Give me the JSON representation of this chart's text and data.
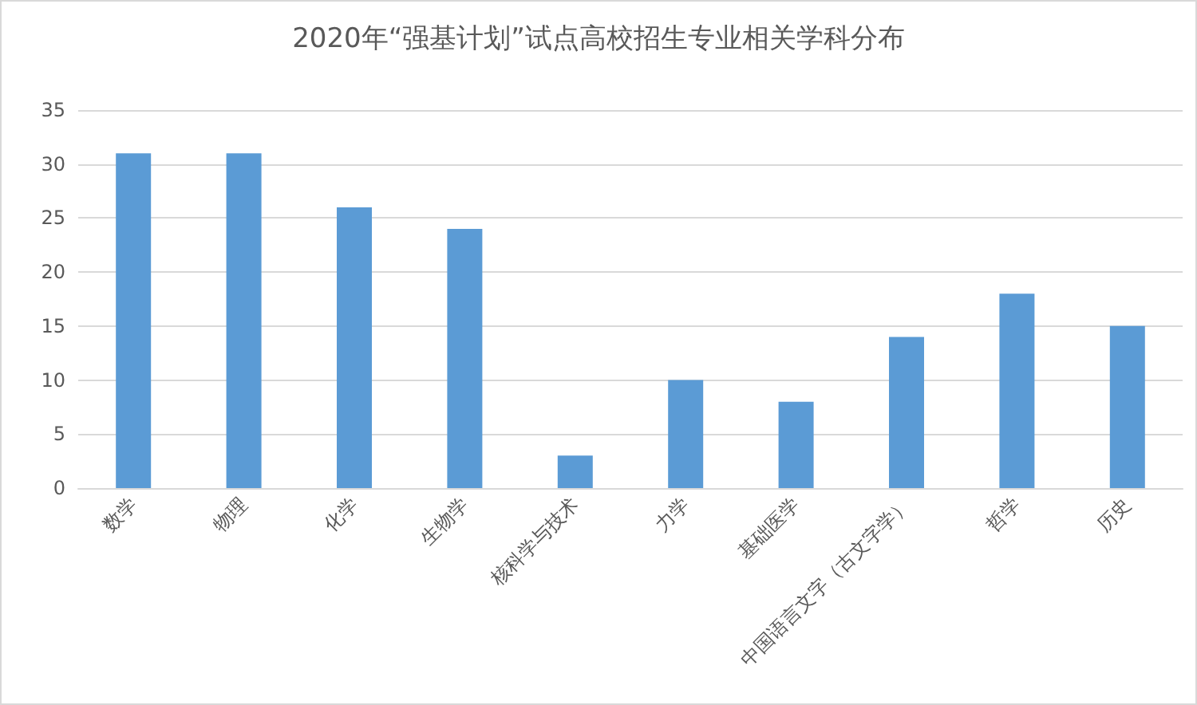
{
  "chart_data": {
    "type": "bar",
    "title": "2020年“强基计划”试点高校招生专业相关学科分布",
    "categories": [
      "数学",
      "物理",
      "化学",
      "生物学",
      "核科学与技术",
      "力学",
      "基础医学",
      "中国语言文字（古文字学）",
      "哲学",
      "历史"
    ],
    "values": [
      31,
      31,
      26,
      24,
      3,
      10,
      8,
      14,
      18,
      15
    ],
    "color": "#5b9bd5",
    "ylim": [
      0,
      35
    ],
    "yticks": [
      0,
      5,
      10,
      15,
      20,
      25,
      30,
      35
    ],
    "grid": "y"
  }
}
